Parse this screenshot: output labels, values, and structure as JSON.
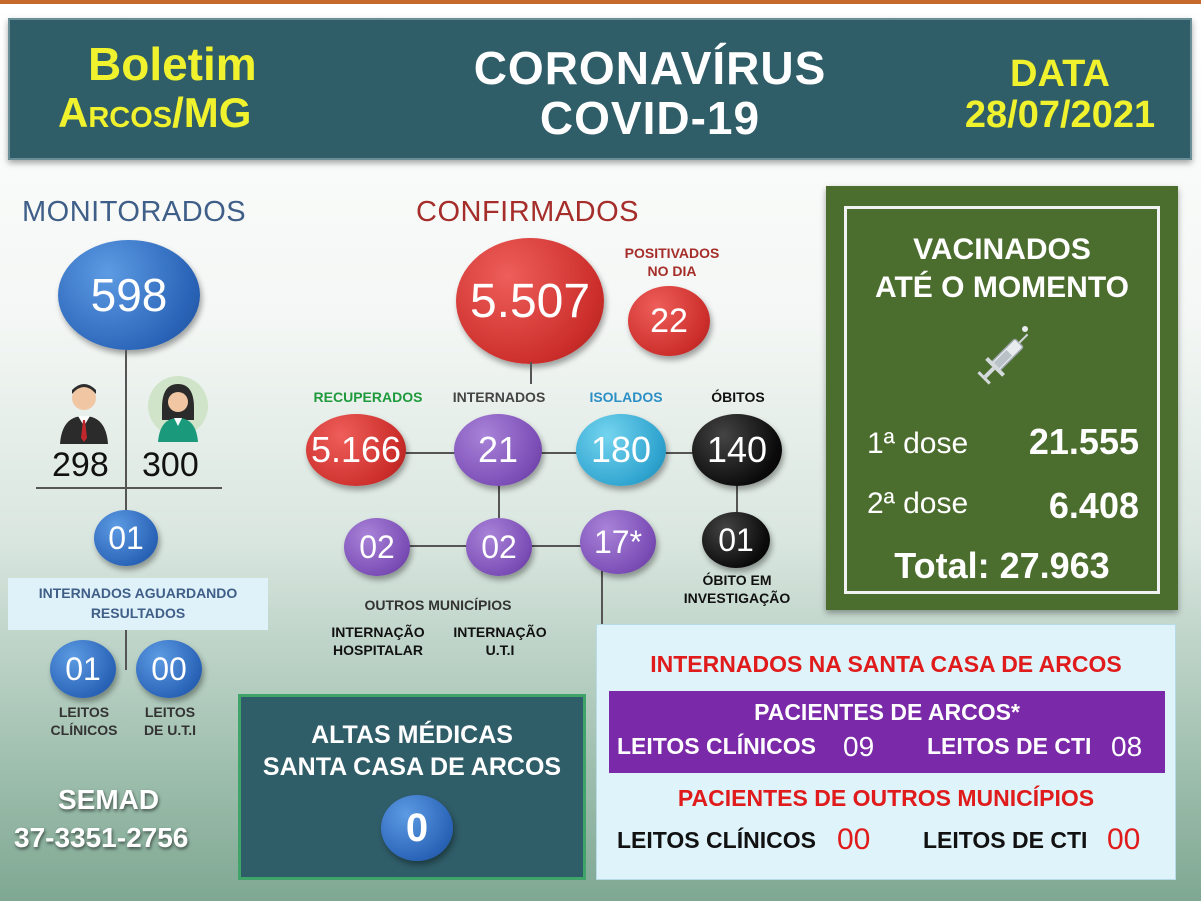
{
  "header": {
    "left_line1": "Boletim",
    "left_line2": "Arcos/MG",
    "center_line1": "CORONAVÍRUS",
    "center_line2": "COVID-19",
    "right_line1": "DATA",
    "right_line2": "28/07/2021"
  },
  "monitorados": {
    "title": "MONITORADOS",
    "total": "598",
    "male": "298",
    "female": "300",
    "aguardando": "01",
    "aguardando_label_line1": "INTERNADOS AGUARDANDO",
    "aguardando_label_line2": "RESULTADOS",
    "leitos_clinicos_value": "01",
    "leitos_uti_value": "00",
    "leitos_clinicos_label_line1": "LEITOS",
    "leitos_clinicos_label_line2": "CLÍNICOS",
    "leitos_uti_label_line1": "LEITOS",
    "leitos_uti_label_line2": "DE U.T.I"
  },
  "semad": {
    "label": "SEMAD",
    "phone": "37-3351-2756"
  },
  "confirmados": {
    "title": "CONFIRMADOS",
    "total": "5.507",
    "positivados_label_line1": "POSITIVADOS",
    "positivados_label_line2": "NO DIA",
    "positivados_value": "22",
    "recuperados_label": "RECUPERADOS",
    "recuperados_value": "5.166",
    "internados_label": "INTERNADOS",
    "internados_value": "21",
    "isolados_label": "ISOLADOS",
    "isolados_value": "180",
    "obitos_label": "ÓBITOS",
    "obitos_value": "140",
    "obito_investigacao_value": "01",
    "obito_investigacao_line1": "ÓBITO EM",
    "obito_investigacao_line2": "INVESTIGAÇÃO",
    "outros_hosp_value": "02",
    "outros_uti_value": "02",
    "santa_casa_value": "17*",
    "outros_municipios_label": "OUTROS MUNICÍPIOS",
    "internacao_hospitalar_line1": "INTERNAÇÃO",
    "internacao_hospitalar_line2": "HOSPITALAR",
    "internacao_uti_line1": "INTERNAÇÃO",
    "internacao_uti_line2": "U.T.I"
  },
  "vacinados": {
    "title_line1": "VACINADOS",
    "title_line2": "ATÉ O MOMENTO",
    "icon": "syringe-icon",
    "dose1_label": "1ª dose",
    "dose1_value": "21.555",
    "dose2_label": "2ª dose",
    "dose2_value": "6.408",
    "total": "Total: 27.963"
  },
  "altas": {
    "title_line1": "ALTAS MÉDICAS",
    "title_line2": "SANTA CASA DE ARCOS",
    "value": "0"
  },
  "santa_casa": {
    "title": "INTERNADOS NA SANTA CASA DE ARCOS",
    "arcos_title": "PACIENTES DE ARCOS*",
    "arcos_clinicos_label": "LEITOS CLÍNICOS",
    "arcos_clinicos_value": "09",
    "arcos_cti_label": "LEITOS DE CTI",
    "arcos_cti_value": "08",
    "outros_title": "PACIENTES DE OUTROS MUNICÍPIOS",
    "outros_clinicos_label": "LEITOS CLÍNICOS",
    "outros_clinicos_value": "00",
    "outros_cti_label": "LEITOS DE CTI",
    "outros_cti_value": "00"
  },
  "colors": {
    "header_bg": "#2f5d68",
    "header_yellow": "#f0f22e",
    "monitorados_blue": "#2a64b8",
    "confirmados_red": "#cc2e2b",
    "recuperados_green": "#1e9a3c",
    "isolados_blue": "#2b8fc5",
    "vacinados_green": "#4b6d2d",
    "santa_casa_purple": "#7a2aa8",
    "alert_red": "#e01b1b"
  }
}
